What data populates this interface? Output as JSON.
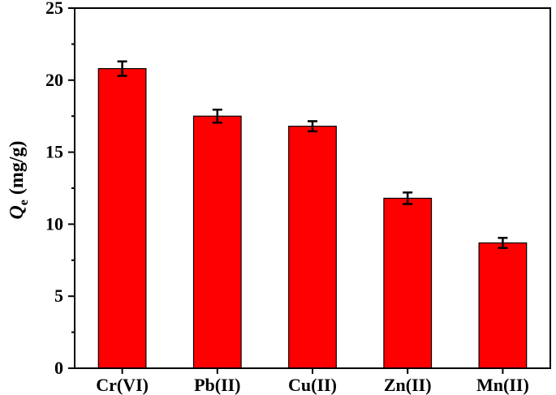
{
  "chart_data": {
    "type": "bar",
    "title": "",
    "xlabel": "",
    "ylabel": {
      "symbol": "Q",
      "subscript": "e",
      "unit": " (mg/g)"
    },
    "categories": [
      "Cr(VI)",
      "Pb(II)",
      "Cu(II)",
      "Zn(II)",
      "Mn(II)"
    ],
    "values": [
      20.8,
      17.5,
      16.8,
      11.8,
      8.7
    ],
    "errors": [
      0.5,
      0.45,
      0.35,
      0.4,
      0.35
    ],
    "ylim": [
      0,
      25
    ],
    "yticks": [
      0,
      5,
      10,
      15,
      20,
      25
    ],
    "grid": false,
    "bar_color": "#ff0000",
    "bar_edge_color": "#000000"
  }
}
